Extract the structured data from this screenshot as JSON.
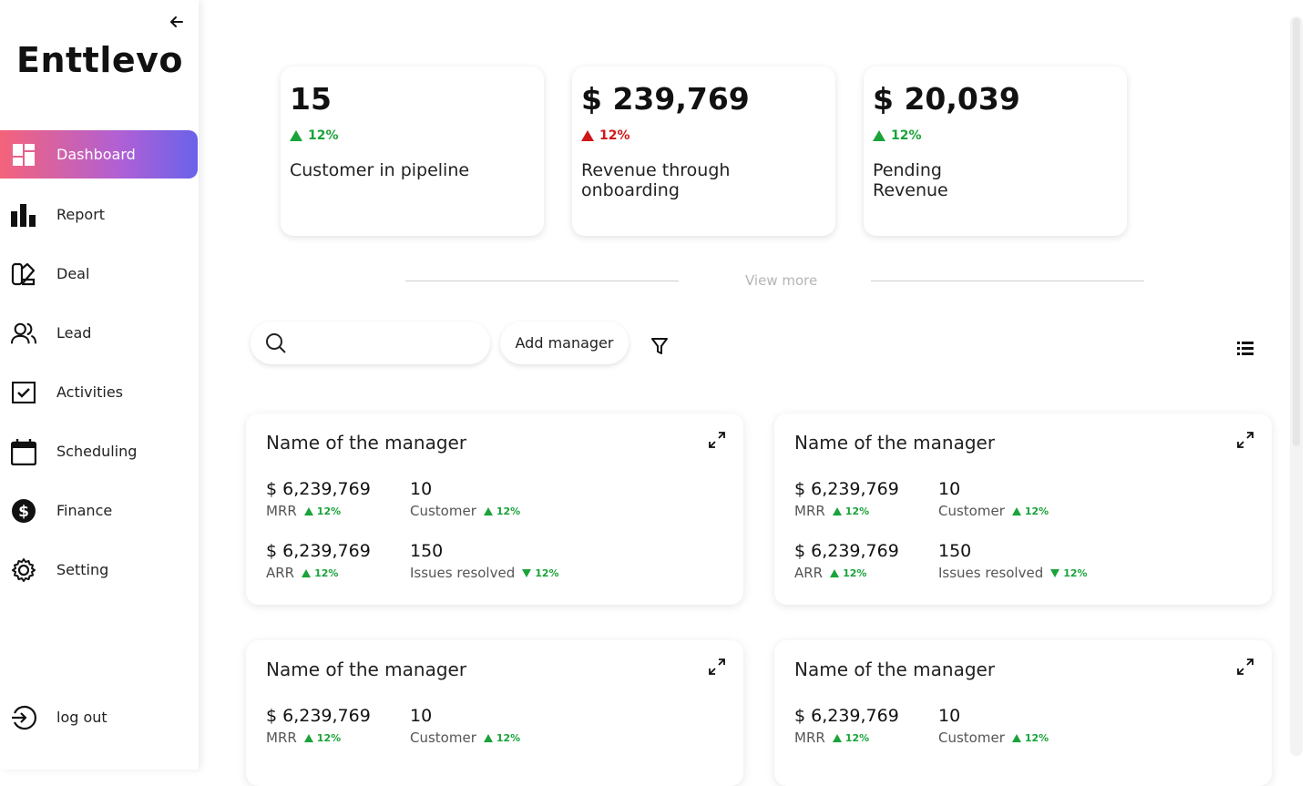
{
  "sidebar": {
    "logo": "Enttlevo",
    "items": [
      {
        "label": "Dashboard",
        "icon": "dashboard-icon"
      },
      {
        "label": "Report",
        "icon": "bar-chart-icon"
      },
      {
        "label": "Deal",
        "icon": "deal-icon"
      },
      {
        "label": "Lead",
        "icon": "users-icon"
      },
      {
        "label": "Activities",
        "icon": "checkbox-icon"
      },
      {
        "label": "Scheduling",
        "icon": "calendar-icon"
      },
      {
        "label": "Finance",
        "icon": "dollar-icon"
      },
      {
        "label": "Setting",
        "icon": "gear-icon"
      }
    ],
    "logout": "log out"
  },
  "stats": [
    {
      "value": "15",
      "change": "12%",
      "label": "Customer in pipeline",
      "change_color": "#1aa33a"
    },
    {
      "value": "$ 239,769",
      "change": "12%",
      "label": "Revenue through onboarding",
      "change_color": "#d01818"
    },
    {
      "value": "$ 20,039",
      "change": "12%",
      "label": "Pending Revenue",
      "change_color": "#1aa33a"
    }
  ],
  "view_more": "View more",
  "toolbar": {
    "search_placeholder": "",
    "add_manager": "Add manager"
  },
  "managers": [
    {
      "name": "Name of the manager",
      "mrr": "$ 6,239,769",
      "mrr_label": "MRR",
      "mrr_change": "12%",
      "customers": "10",
      "customers_label": "Customer",
      "customers_change": "12%",
      "arr": "$ 6,239,769",
      "arr_label": "ARR",
      "arr_change": "12%",
      "issues": "150",
      "issues_label": "Issues resolved",
      "issues_change": "12%"
    },
    {
      "name": "Name of the manager",
      "mrr": "$ 6,239,769",
      "mrr_label": "MRR",
      "mrr_change": "12%",
      "customers": "10",
      "customers_label": "Customer",
      "customers_change": "12%",
      "arr": "$ 6,239,769",
      "arr_label": "ARR",
      "arr_change": "12%",
      "issues": "150",
      "issues_label": "Issues resolved",
      "issues_change": "12%"
    },
    {
      "name": "Name of the manager",
      "mrr": "$ 6,239,769",
      "mrr_label": "MRR",
      "mrr_change": "12%",
      "customers": "10",
      "customers_label": "Customer",
      "customers_change": "12%"
    },
    {
      "name": "Name of the manager",
      "mrr": "$ 6,239,769",
      "mrr_label": "MRR",
      "mrr_change": "12%",
      "customers": "10",
      "customers_label": "Customer",
      "customers_change": "12%"
    }
  ],
  "colors": {
    "accent_start": "#f4637a",
    "accent_end": "#6a62ea",
    "up": "#1aa33a",
    "down": "#d01818"
  }
}
